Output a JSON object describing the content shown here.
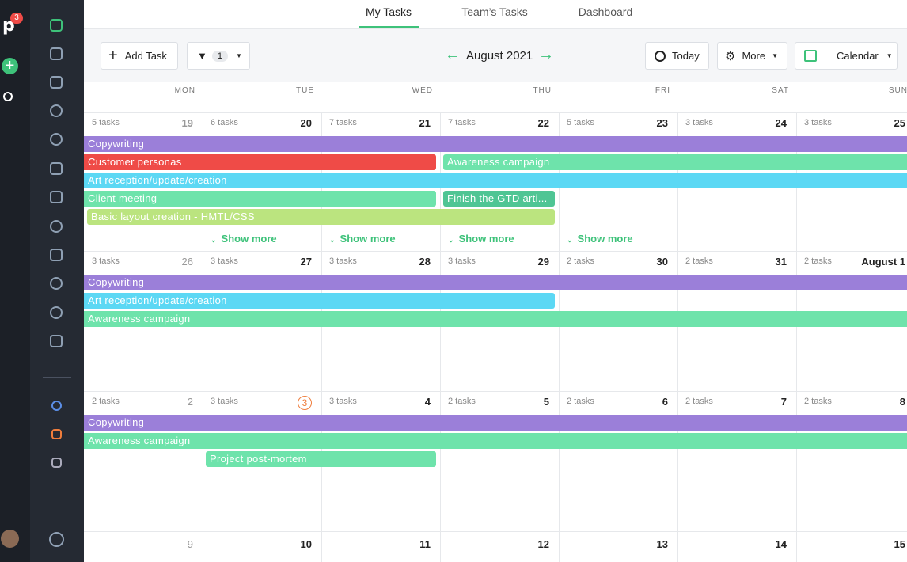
{
  "sidebar": {
    "badge": "3"
  },
  "tabs": [
    "My Tasks",
    "Team’s Tasks",
    "Dashboard"
  ],
  "toolbar": {
    "add_task": "Add Task",
    "filter_count": "1",
    "month": "August 2021",
    "today": "Today",
    "more": "More",
    "view": "Calendar"
  },
  "weekdays": [
    "MON",
    "TUE",
    "WED",
    "THU",
    "FRI",
    "SAT",
    "SUN"
  ],
  "weeks": [
    {
      "days": [
        {
          "count": "5 tasks",
          "date": "19"
        },
        {
          "count": "6 tasks",
          "date": "20"
        },
        {
          "count": "7 tasks",
          "date": "21"
        },
        {
          "count": "7 tasks",
          "date": "22"
        },
        {
          "count": "5 tasks",
          "date": "23"
        },
        {
          "count": "3 tasks",
          "date": "24"
        },
        {
          "count": "3 tasks",
          "date": "25"
        }
      ],
      "events": [
        {
          "label": "Copywriting",
          "color": "#9b7fd9"
        },
        {
          "label": "Customer personas",
          "color": "#ef4b47"
        },
        {
          "label": "Awareness campaign",
          "color": "#6ee3ab"
        },
        {
          "label": "Art reception/update/creation",
          "color": "#5cd8f4"
        },
        {
          "label": "Client meeting",
          "color": "#6ee3ab"
        },
        {
          "label": "Finish the GTD arti...",
          "color": "#4fc594"
        },
        {
          "label": "Basic layout creation - HMTL/CSS",
          "color": "#bbe47f"
        }
      ],
      "show_more": [
        "Show more",
        "Show more",
        "Show more",
        "Show more"
      ]
    },
    {
      "days": [
        {
          "count": "3 tasks",
          "date": "26"
        },
        {
          "count": "3 tasks",
          "date": "27"
        },
        {
          "count": "3 tasks",
          "date": "28"
        },
        {
          "count": "3 tasks",
          "date": "29"
        },
        {
          "count": "2 tasks",
          "date": "30"
        },
        {
          "count": "2 tasks",
          "date": "31"
        },
        {
          "count": "2 tasks",
          "date": "August 1"
        }
      ],
      "events": [
        {
          "label": "Copywriting",
          "color": "#9b7fd9"
        },
        {
          "label": "Art reception/update/creation",
          "color": "#5cd8f4"
        },
        {
          "label": "Awareness campaign",
          "color": "#6ee3ab"
        }
      ]
    },
    {
      "days": [
        {
          "count": "2 tasks",
          "date": "2"
        },
        {
          "count": "3 tasks",
          "date": "3"
        },
        {
          "count": "3 tasks",
          "date": "4"
        },
        {
          "count": "2 tasks",
          "date": "5"
        },
        {
          "count": "2 tasks",
          "date": "6"
        },
        {
          "count": "2 tasks",
          "date": "7"
        },
        {
          "count": "2 tasks",
          "date": "8"
        }
      ],
      "events": [
        {
          "label": "Copywriting",
          "color": "#9b7fd9"
        },
        {
          "label": "Awareness campaign",
          "color": "#6ee3ab"
        },
        {
          "label": "Project post-mortem",
          "color": "#6ee3ab"
        }
      ]
    },
    {
      "days": [
        {
          "date": "9"
        },
        {
          "date": "10"
        },
        {
          "date": "11"
        },
        {
          "date": "12"
        },
        {
          "date": "13"
        },
        {
          "date": "14"
        },
        {
          "date": "15"
        }
      ]
    }
  ]
}
